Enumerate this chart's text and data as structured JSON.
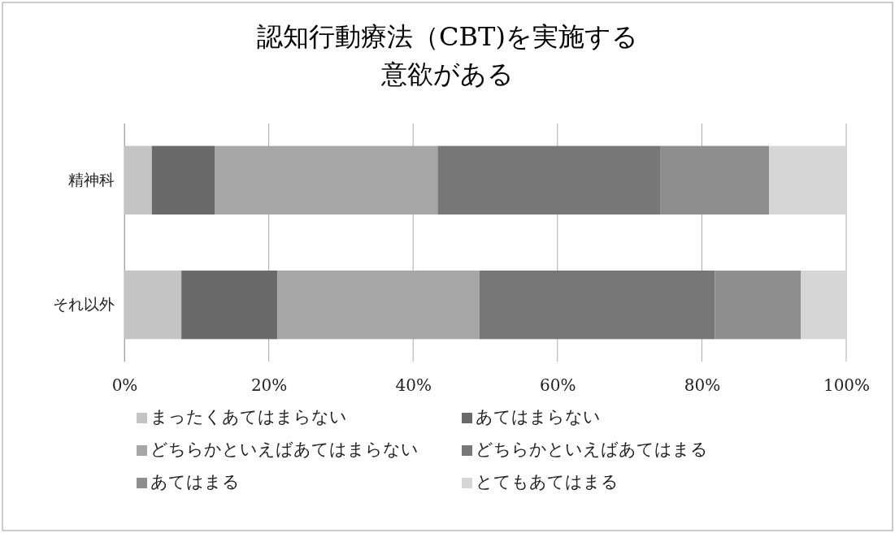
{
  "chart_data": {
    "type": "bar",
    "orientation": "horizontal",
    "stacked": true,
    "title": "認知行動療法（CBT)を実施する意欲がある",
    "categories": [
      "精神科",
      "それ以外"
    ],
    "series": [
      {
        "name": "まったくあてはまらない",
        "color": "#c4c4c4",
        "values": [
          3.8,
          7.9
        ]
      },
      {
        "name": "あてはまらない",
        "color": "#6a6a6a",
        "values": [
          8.7,
          13.3
        ]
      },
      {
        "name": "どちらかといえばあてはまらない",
        "color": "#a6a6a6",
        "values": [
          30.9,
          28.0
        ]
      },
      {
        "name": "どちらかといえばあてはまる",
        "color": "#777777",
        "values": [
          30.9,
          32.6
        ]
      },
      {
        "name": "あてはまる",
        "color": "#8e8e8e",
        "values": [
          15.0,
          11.9
        ]
      },
      {
        "name": "とてもあてはまる",
        "color": "#d6d6d6",
        "values": [
          10.7,
          6.3
        ]
      }
    ],
    "xlim": [
      0,
      100
    ],
    "xticks": [
      {
        "value": 0,
        "label": "0%"
      },
      {
        "value": 20,
        "label": "20%"
      },
      {
        "value": 40,
        "label": "40%"
      },
      {
        "value": 60,
        "label": "60%"
      },
      {
        "value": 80,
        "label": "80%"
      },
      {
        "value": 100,
        "label": "100%"
      }
    ],
    "grid": "x",
    "legend": "bottom"
  }
}
